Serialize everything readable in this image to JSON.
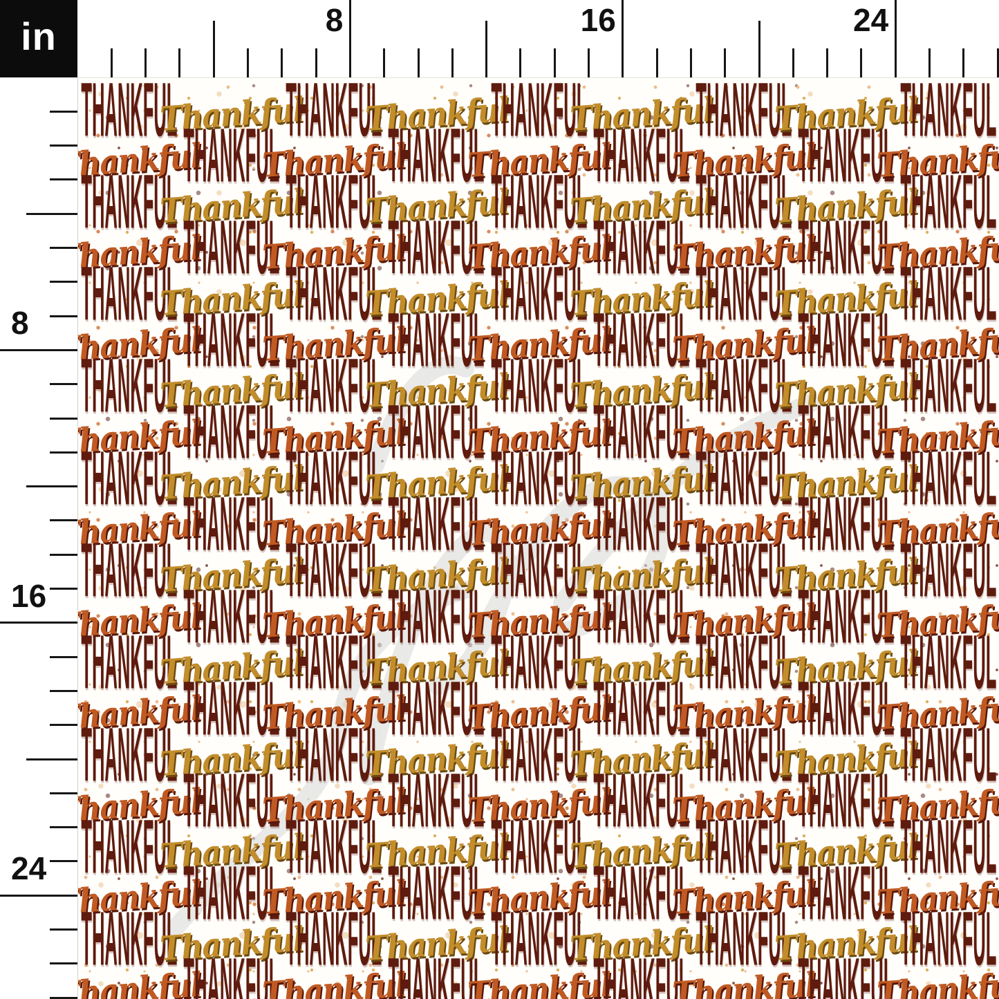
{
  "ruler": {
    "unit_label": "in",
    "numbers": [
      "8",
      "16",
      "24"
    ],
    "number_values": [
      8,
      16,
      24
    ],
    "inches_visible": 27,
    "minor_tick_every_in": 1,
    "medium_tick_every_in": 4,
    "major_tick_every_in": 8
  },
  "pattern": {
    "block_word": "THANKFUL",
    "script_word": "Thankful",
    "row_count": 20,
    "cells_per_row": 9,
    "row_even_sequence": [
      "block",
      "script-gold"
    ],
    "row_odd_sequence": [
      "script-orange",
      "block"
    ]
  },
  "colors": {
    "block_text": "#5e1b0e",
    "script_gold": "#c28d2a",
    "script_gold_shadow": "#6b4a10",
    "script_orange": "#c05a22",
    "script_orange_shadow": "#571708",
    "ruler_bg": "#ffffff",
    "ruler_tick": "#161616",
    "unit_box_bg": "#0c0c0c",
    "unit_box_text": "#ffffff",
    "watermark": "#d8d8d8",
    "speckle_tan": "#edbd8f",
    "speckle_mauve": "#a98a85",
    "speckle_gold": "#ddb05e",
    "speckle_orange": "#d98d5c",
    "speckle_cream": "#f4ddc0",
    "speckle_maroon": "#8a5a4c"
  }
}
